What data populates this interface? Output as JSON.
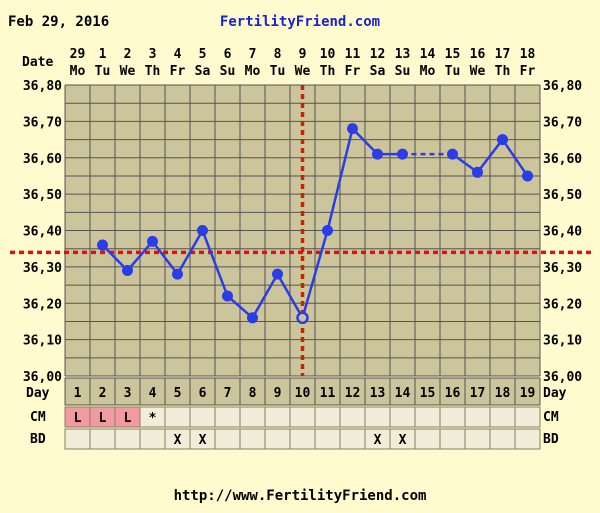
{
  "header": {
    "date": "Feb 29, 2016",
    "site": "FertilityFriend.com"
  },
  "footer": {
    "url": "http://www.FertilityFriend.com"
  },
  "chart_data": {
    "type": "line",
    "date_label": "Date",
    "day_label": "Day",
    "dates": [
      "29",
      "1",
      "2",
      "3",
      "4",
      "5",
      "6",
      "7",
      "8",
      "9",
      "10",
      "11",
      "12",
      "13",
      "14",
      "15",
      "16",
      "17",
      "18"
    ],
    "weekdays": [
      "Mo",
      "Tu",
      "We",
      "Th",
      "Fr",
      "Sa",
      "Su",
      "Mo",
      "Tu",
      "We",
      "Th",
      "Fr",
      "Sa",
      "Su",
      "Mo",
      "Tu",
      "We",
      "Th",
      "Fr"
    ],
    "cycle_days": [
      "1",
      "2",
      "3",
      "4",
      "5",
      "6",
      "7",
      "8",
      "9",
      "10",
      "11",
      "12",
      "13",
      "14",
      "15",
      "16",
      "17",
      "18",
      "19"
    ],
    "y_ticks": [
      "36,00",
      "36,10",
      "36,20",
      "36,30",
      "36,40",
      "36,50",
      "36,60",
      "36,70",
      "36,80"
    ],
    "ylim": [
      36.0,
      36.8
    ],
    "temperatures": [
      null,
      36.36,
      36.29,
      36.37,
      36.28,
      36.4,
      36.22,
      36.16,
      36.28,
      36.16,
      36.4,
      36.68,
      36.61,
      36.61,
      null,
      36.61,
      36.56,
      36.65,
      36.55
    ],
    "open_points": [
      9
    ],
    "coverline": 36.34,
    "ovulation_day_index": 9,
    "rows": [
      {
        "label": "CM",
        "cells": [
          "L",
          "L",
          "L",
          "*",
          "",
          "",
          "",
          "",
          "",
          "",
          "",
          "",
          "",
          "",
          "",
          "",
          "",
          "",
          ""
        ],
        "highlight": [
          true,
          true,
          true,
          false,
          false,
          false,
          false,
          false,
          false,
          false,
          false,
          false,
          false,
          false,
          false,
          false,
          false,
          false,
          false
        ]
      },
      {
        "label": "BD",
        "cells": [
          "",
          "",
          "",
          "",
          "X",
          "X",
          "",
          "",
          "",
          "",
          "",
          "",
          "X",
          "X",
          "",
          "",
          "",
          "",
          ""
        ]
      }
    ],
    "colors": {
      "line": "#2a3de6",
      "coverline": "#dd1111",
      "ovulation": "#cc2200",
      "plot_bg": "#ccc49a",
      "page_bg": "#fffbce",
      "row_bg": "#f1edd8",
      "cm_highlight": "#f19aa2",
      "grid": "#555555",
      "site_text": "#1a23cc"
    }
  }
}
